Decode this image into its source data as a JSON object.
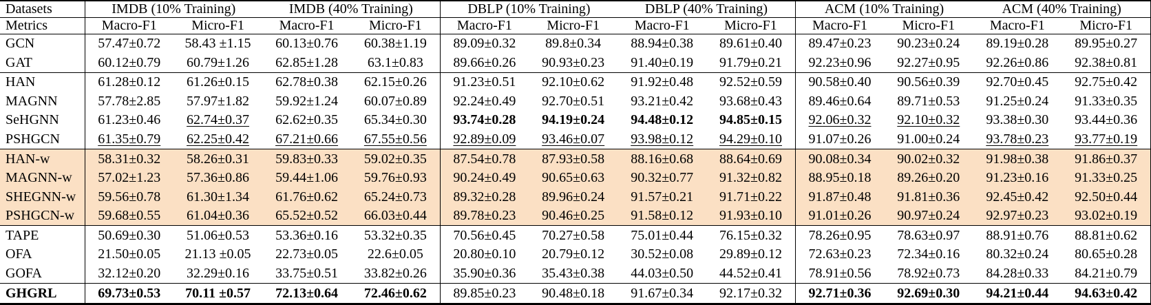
{
  "corner": {
    "row1": "Datasets",
    "row2": "Metrics"
  },
  "dataset_groups": [
    "IMDB (10% Training)",
    "IMDB (40% Training)",
    "DBLP (10% Training)",
    "DBLP (40% Training)",
    "ACM (10% Training)",
    "ACM (40% Training)"
  ],
  "metric_columns": [
    "Macro-F1",
    "Micro-F1",
    "Macro-F1",
    "Micro-F1",
    "Macro-F1",
    "Micro-F1",
    "Macro-F1",
    "Micro-F1",
    "Macro-F1",
    "Micro-F1",
    "Macro-F1",
    "Micro-F1"
  ],
  "colors": {
    "highlight_row_bg": "#FBE0C4",
    "text": "#000000",
    "border": "#000000",
    "background": "#FFFFFF"
  },
  "rows": [
    {
      "model": "GCN",
      "highlight": false,
      "bold_model": false,
      "rule_below": false,
      "cells": [
        {
          "text": "57.47±0.72"
        },
        {
          "text": "58.43 ±1.15"
        },
        {
          "text": "60.13±0.76"
        },
        {
          "text": "60.38±1.19"
        },
        {
          "text": "89.09±0.32"
        },
        {
          "text": "89.8±0.34"
        },
        {
          "text": "88.94±0.38"
        },
        {
          "text": "89.61±0.40"
        },
        {
          "text": "89.47±0.23"
        },
        {
          "text": "90.23±0.24"
        },
        {
          "text": "89.19±0.28"
        },
        {
          "text": "89.95±0.27"
        }
      ]
    },
    {
      "model": "GAT",
      "highlight": false,
      "bold_model": false,
      "rule_below": true,
      "cells": [
        {
          "text": "60.12±0.79"
        },
        {
          "text": "60.79±1.26"
        },
        {
          "text": "62.85±1.28"
        },
        {
          "text": "63.1±0.83"
        },
        {
          "text": "89.66±0.26"
        },
        {
          "text": "90.93±0.23"
        },
        {
          "text": "91.40±0.19"
        },
        {
          "text": "91.79±0.21"
        },
        {
          "text": "92.23±0.96"
        },
        {
          "text": "92.27±0.95"
        },
        {
          "text": "92.26±0.86"
        },
        {
          "text": "92.38±0.81"
        }
      ]
    },
    {
      "model": "HAN",
      "highlight": false,
      "bold_model": false,
      "rule_below": false,
      "cells": [
        {
          "text": "61.28±0.12"
        },
        {
          "text": "61.26±0.15"
        },
        {
          "text": "62.78±0.38"
        },
        {
          "text": "62.15±0.26"
        },
        {
          "text": "91.23±0.51"
        },
        {
          "text": "92.10±0.62"
        },
        {
          "text": "91.92±0.48"
        },
        {
          "text": "92.52±0.59"
        },
        {
          "text": "90.58±0.40"
        },
        {
          "text": "90.56±0.39"
        },
        {
          "text": "92.70±0.45"
        },
        {
          "text": "92.75±0.42"
        }
      ]
    },
    {
      "model": "MAGNN",
      "highlight": false,
      "bold_model": false,
      "rule_below": false,
      "cells": [
        {
          "text": "57.78±2.85"
        },
        {
          "text": "57.97±1.82"
        },
        {
          "text": "59.92±1.24"
        },
        {
          "text": "60.07±0.89"
        },
        {
          "text": "92.24±0.49"
        },
        {
          "text": "92.70±0.51"
        },
        {
          "text": "93.21±0.42"
        },
        {
          "text": "93.68±0.43"
        },
        {
          "text": "89.46±0.64"
        },
        {
          "text": "89.71±0.53"
        },
        {
          "text": "91.25±0.24"
        },
        {
          "text": "91.33±0.35"
        }
      ]
    },
    {
      "model": "SeHGNN",
      "highlight": false,
      "bold_model": false,
      "rule_below": false,
      "cells": [
        {
          "text": "61.23±0.46"
        },
        {
          "text": "62.74±0.37",
          "underline": true
        },
        {
          "text": "62.62±0.35"
        },
        {
          "text": "65.34±0.30"
        },
        {
          "text": "93.74±0.28",
          "bold": true
        },
        {
          "text": "94.19±0.24",
          "bold": true
        },
        {
          "text": "94.48±0.12",
          "bold": true
        },
        {
          "text": "94.85±0.15",
          "bold": true
        },
        {
          "text": "92.06±0.32",
          "underline": true
        },
        {
          "text": "92.10±0.32",
          "underline": true
        },
        {
          "text": "93.38±0.30"
        },
        {
          "text": "93.44±0.36"
        }
      ]
    },
    {
      "model": "PSHGCN",
      "highlight": false,
      "bold_model": false,
      "rule_below": true,
      "cells": [
        {
          "text": "61.35±0.79",
          "underline": true
        },
        {
          "text": "62.25±0.42",
          "underline": true
        },
        {
          "text": "67.21±0.66",
          "underline": true
        },
        {
          "text": "67.55±0.56",
          "underline": true
        },
        {
          "text": "92.89±0.09",
          "underline": true
        },
        {
          "text": "93.46±0.07",
          "underline": true
        },
        {
          "text": "93.98±0.12",
          "underline": true
        },
        {
          "text": "94.29±0.10",
          "underline": true
        },
        {
          "text": "91.07±0.26"
        },
        {
          "text": "91.00±0.24"
        },
        {
          "text": "93.78±0.23",
          "underline": true
        },
        {
          "text": "93.77±0.19",
          "underline": true
        }
      ]
    },
    {
      "model": "HAN-w",
      "highlight": true,
      "bold_model": false,
      "rule_below": false,
      "cells": [
        {
          "text": "58.31±0.32"
        },
        {
          "text": "58.26±0.31"
        },
        {
          "text": "59.83±0.33"
        },
        {
          "text": "59.02±0.35"
        },
        {
          "text": "87.54±0.78"
        },
        {
          "text": "87.93±0.58"
        },
        {
          "text": "88.16±0.68"
        },
        {
          "text": "88.64±0.69"
        },
        {
          "text": "90.08±0.34"
        },
        {
          "text": "90.02±0.32"
        },
        {
          "text": "91.98±0.38"
        },
        {
          "text": "91.86±0.37"
        }
      ]
    },
    {
      "model": "MAGNN-w",
      "highlight": true,
      "bold_model": false,
      "rule_below": false,
      "cells": [
        {
          "text": "57.02±1.23"
        },
        {
          "text": "57.36±0.86"
        },
        {
          "text": "59.44±1.06"
        },
        {
          "text": "59.76±0.93"
        },
        {
          "text": "90.24±0.49"
        },
        {
          "text": "90.65±0.63"
        },
        {
          "text": "90.32±0.77"
        },
        {
          "text": "91.32±0.82"
        },
        {
          "text": "88.95±0.18"
        },
        {
          "text": "89.26±0.20"
        },
        {
          "text": "91.23±0.16"
        },
        {
          "text": "91.33±0.25"
        }
      ]
    },
    {
      "model": "SHEGNN-w",
      "highlight": true,
      "bold_model": false,
      "rule_below": false,
      "cells": [
        {
          "text": "59.56±0.78"
        },
        {
          "text": "61.30±1.34"
        },
        {
          "text": "61.76±0.62"
        },
        {
          "text": "65.24±0.73"
        },
        {
          "text": "89.32±0.28"
        },
        {
          "text": "89.96±0.24"
        },
        {
          "text": "91.57±0.21"
        },
        {
          "text": "91.71±0.22"
        },
        {
          "text": "91.87±0.48"
        },
        {
          "text": "91.81±0.36"
        },
        {
          "text": "92.45±0.42"
        },
        {
          "text": "92.50±0.44"
        }
      ]
    },
    {
      "model": "PSHGCN-w",
      "highlight": true,
      "bold_model": false,
      "rule_below": true,
      "cells": [
        {
          "text": "59.68±0.55"
        },
        {
          "text": "61.04±0.36"
        },
        {
          "text": "65.52±0.52"
        },
        {
          "text": "66.03±0.44"
        },
        {
          "text": "89.78±0.23"
        },
        {
          "text": "90.46±0.25"
        },
        {
          "text": "91.58±0.12"
        },
        {
          "text": "91.93±0.10"
        },
        {
          "text": "91.01±0.26"
        },
        {
          "text": "90.97±0.24"
        },
        {
          "text": "92.97±0.23"
        },
        {
          "text": "93.02±0.19"
        }
      ]
    },
    {
      "model": "TAPE",
      "highlight": false,
      "bold_model": false,
      "rule_below": false,
      "cells": [
        {
          "text": "50.69±0.30"
        },
        {
          "text": "51.06±0.53"
        },
        {
          "text": "53.36±0.16"
        },
        {
          "text": "53.32±0.35"
        },
        {
          "text": "70.56±0.45"
        },
        {
          "text": "70.27±0.58"
        },
        {
          "text": "75.01±0.44"
        },
        {
          "text": "76.15±0.32"
        },
        {
          "text": "78.26±0.95"
        },
        {
          "text": "78.63±0.97"
        },
        {
          "text": "88.91±0.76"
        },
        {
          "text": "88.81±0.62"
        }
      ]
    },
    {
      "model": "OFA",
      "highlight": false,
      "bold_model": false,
      "rule_below": false,
      "cells": [
        {
          "text": "21.50±0.05"
        },
        {
          "text": "21.13 ±0.05"
        },
        {
          "text": "22.73±0.05"
        },
        {
          "text": "22.6±0.05"
        },
        {
          "text": "20.80±0.10"
        },
        {
          "text": "20.79±0.12"
        },
        {
          "text": "30.52±0.08"
        },
        {
          "text": "29.89±0.12"
        },
        {
          "text": "72.63±0.23"
        },
        {
          "text": "72.34±0.16"
        },
        {
          "text": "80.32±0.24"
        },
        {
          "text": "80.65±0.28"
        }
      ]
    },
    {
      "model": "GOFA",
      "highlight": false,
      "bold_model": false,
      "rule_below": true,
      "cells": [
        {
          "text": "32.12±0.20"
        },
        {
          "text": "32.29±0.16"
        },
        {
          "text": "33.75±0.51"
        },
        {
          "text": "33.82±0.26"
        },
        {
          "text": "35.90±0.36"
        },
        {
          "text": "35.43±0.38"
        },
        {
          "text": "44.03±0.50"
        },
        {
          "text": "44.52±0.41"
        },
        {
          "text": "78.91±0.56"
        },
        {
          "text": "78.92±0.73"
        },
        {
          "text": "84.28±0.33"
        },
        {
          "text": "84.21±0.79"
        }
      ]
    },
    {
      "model": "GHGRL",
      "highlight": false,
      "bold_model": true,
      "rule_below": false,
      "cells": [
        {
          "text": "69.73±0.53",
          "bold": true
        },
        {
          "text": "70.11 ±0.57",
          "bold": true
        },
        {
          "text": "72.13±0.64",
          "bold": true
        },
        {
          "text": "72.46±0.62",
          "bold": true
        },
        {
          "text": "89.85±0.23"
        },
        {
          "text": "90.48±0.18"
        },
        {
          "text": "91.67±0.34"
        },
        {
          "text": "92.17±0.32"
        },
        {
          "text": "92.71±0.36",
          "bold": true
        },
        {
          "text": "92.69±0.30",
          "bold": true
        },
        {
          "text": "94.21±0.44",
          "bold": true
        },
        {
          "text": "94.63±0.42",
          "bold": true
        }
      ]
    }
  ]
}
